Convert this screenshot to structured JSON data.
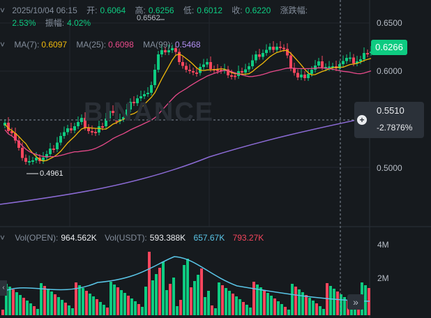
{
  "info": {
    "datetime": "2025/10/04 06:15",
    "open_label": "开:",
    "open": "0.6064",
    "high_label": "高:",
    "high": "0.6256",
    "low_label": "低:",
    "low": "0.6012",
    "close_label": "收:",
    "close": "0.6220",
    "change_label": "涨跌幅:",
    "change": "2.53%",
    "amplitude_label": "振幅:",
    "amplitude": "4.02%"
  },
  "ma": {
    "ma7_label": "MA(7):",
    "ma7": "0.6097",
    "ma25_label": "MA(25):",
    "ma25": "0.6098",
    "ma99_label": "MA(99):",
    "ma99": "0.5468"
  },
  "price_axis": [
    "0.6500",
    "0.6000",
    "0.5000"
  ],
  "current_price": "0.6266",
  "hover": {
    "price": "0.5510",
    "percent": "-2.7876%"
  },
  "annotations": {
    "high_mark": "0.6562",
    "low_mark": "0.4961"
  },
  "watermark": "BINANCE",
  "volume": {
    "vol_open_label": "Vol(OPEN):",
    "vol_open": "964.562K",
    "vol_usdt_label": "Vol(USDT):",
    "vol_usdt": "593.388K",
    "ma5": "657.67K",
    "ma10": "793.27K",
    "axis": [
      "4M",
      "2M"
    ]
  },
  "colors": {
    "up": "#0ecb81",
    "down": "#f6465d",
    "ma7": "#f0b90b",
    "ma25": "#e84a8a",
    "ma99": "#8c6bd6",
    "vol_ma5": "#5ac6e8"
  },
  "icons": {
    "collapse": "chevron-down-icon",
    "crosshair_add": "plus-circle-icon",
    "fast_forward": "double-chevron-right-icon"
  }
}
